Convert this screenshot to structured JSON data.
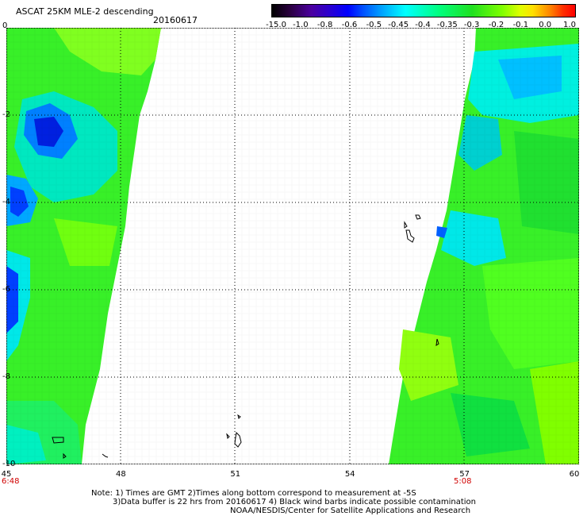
{
  "header": {
    "title": "ASCAT 25KM MLE-2 descending",
    "date": "20160617"
  },
  "colorbar": {
    "labels": [
      "-15.0",
      "-1.0",
      "-0.8",
      "-0.6",
      "-0.5",
      "-0.45",
      "-0.4",
      "-0.35",
      "-0.3",
      "-0.2",
      "-0.1",
      "0.0",
      "1.0"
    ]
  },
  "axes": {
    "y_labels": [
      "0",
      "-2",
      "-4",
      "-6",
      "-8",
      "-10"
    ],
    "x_labels": [
      "45",
      "48",
      "51",
      "54",
      "57",
      "60"
    ],
    "x_range": [
      45,
      60
    ],
    "y_range": [
      -10,
      0
    ],
    "grid": "dotted"
  },
  "times": {
    "left": "6:48",
    "right": "5:08"
  },
  "notes": {
    "line1": "Note: 1) Times are GMT 2)Times along bottom correspond to measurement at -5S",
    "line2": "3)Data buffer is 22 hrs from 20160617 4) Black wind barbs indicate possible contamination",
    "line3": "NOAA/NESDIS/Center for Satellite Applications and Research"
  },
  "colors": {
    "ocean_dominant": "#40ff20",
    "low_value": "#0000ff",
    "mid_value": "#00ffff",
    "land_outline": "#000000"
  }
}
